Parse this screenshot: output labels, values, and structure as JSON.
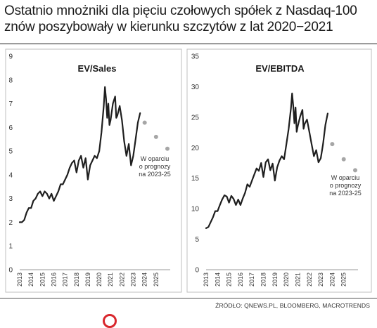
{
  "headline": "Ostatnio mnożniki dla pięciu czołowych spółek z Nasdaq-100 znów poszybowały w kierunku szczytów z lat 2020−2021",
  "source": "ŹRÓDŁO: QNEWS.PL, BLOOMBERG, MACROTRENDS",
  "colors": {
    "line": "#1f1f1f",
    "forecast": "#a6a6a6",
    "frame": "#bfbfbf"
  },
  "chart_data": [
    {
      "type": "line",
      "title": "EV/Sales",
      "ylim": [
        0,
        9
      ],
      "yticks": [
        "0",
        "1",
        "2",
        "3",
        "4",
        "5",
        "6",
        "7",
        "8",
        "9"
      ],
      "xticks": [
        "2013",
        "2014",
        "2015",
        "2016",
        "2017",
        "2018",
        "2019",
        "2020",
        "2021",
        "2022",
        "2023",
        "2024",
        "2025"
      ],
      "xlim": [
        2013,
        2026
      ],
      "annotation": [
        "W oparciu",
        "o prognozy",
        "na 2023-25"
      ],
      "series": [
        {
          "x": [
            2013.0,
            2013.2,
            2013.4,
            2013.6,
            2013.8,
            2014.0,
            2014.2,
            2014.4,
            2014.6,
            2014.8,
            2015.0,
            2015.2,
            2015.4,
            2015.6,
            2015.8,
            2016.0,
            2016.2,
            2016.4,
            2016.6,
            2016.8,
            2017.0,
            2017.2,
            2017.4,
            2017.6,
            2017.8,
            2018.0,
            2018.2,
            2018.4,
            2018.6,
            2018.8,
            2019.0,
            2019.2,
            2019.4,
            2019.6,
            2019.8,
            2020.0,
            2020.2,
            2020.4,
            2020.5,
            2020.6,
            2020.7,
            2020.8,
            2020.9,
            2021.0,
            2021.2,
            2021.4,
            2021.5,
            2021.6,
            2021.8,
            2022.0,
            2022.2,
            2022.4,
            2022.6,
            2022.8,
            2023.0,
            2023.2,
            2023.4,
            2023.6
          ],
          "y": [
            2.0,
            2.0,
            2.1,
            2.4,
            2.6,
            2.6,
            2.9,
            3.0,
            3.2,
            3.3,
            3.1,
            3.3,
            3.2,
            3.0,
            3.2,
            2.9,
            3.1,
            3.3,
            3.6,
            3.6,
            3.8,
            4.0,
            4.3,
            4.5,
            4.6,
            4.1,
            4.6,
            4.8,
            4.3,
            4.7,
            3.8,
            4.4,
            4.6,
            4.8,
            4.7,
            5.0,
            5.8,
            6.9,
            7.7,
            7.2,
            6.4,
            7.0,
            6.1,
            6.3,
            7.0,
            7.3,
            6.4,
            6.5,
            6.9,
            6.3,
            5.4,
            4.8,
            5.3,
            4.4,
            4.8,
            5.5,
            6.2,
            6.6
          ]
        },
        {
          "name": "forecast",
          "x": [
            2024.0,
            2025.0,
            2026.0
          ],
          "y": [
            6.2,
            5.6,
            5.1
          ]
        }
      ]
    },
    {
      "type": "line",
      "title": "EV/EBITDA",
      "ylim": [
        0,
        35
      ],
      "yticks": [
        "0",
        "5",
        "10",
        "15",
        "20",
        "25",
        "30",
        "35"
      ],
      "xticks": [
        "2013",
        "2014",
        "2015",
        "2016",
        "2017",
        "2018",
        "2019",
        "2020",
        "2021",
        "2022",
        "2023",
        "2024",
        "2025"
      ],
      "xlim": [
        2013,
        2026
      ],
      "annotation": [
        "W oparciu",
        "o prognozy",
        "na 2023-25"
      ],
      "series": [
        {
          "x": [
            2013.0,
            2013.2,
            2013.4,
            2013.6,
            2013.8,
            2014.0,
            2014.2,
            2014.4,
            2014.6,
            2014.8,
            2015.0,
            2015.2,
            2015.4,
            2015.6,
            2015.8,
            2016.0,
            2016.2,
            2016.4,
            2016.6,
            2016.8,
            2017.0,
            2017.2,
            2017.4,
            2017.6,
            2017.8,
            2018.0,
            2018.2,
            2018.4,
            2018.6,
            2018.8,
            2019.0,
            2019.2,
            2019.4,
            2019.6,
            2019.8,
            2020.0,
            2020.2,
            2020.4,
            2020.5,
            2020.6,
            2020.7,
            2020.8,
            2020.9,
            2021.0,
            2021.2,
            2021.4,
            2021.5,
            2021.6,
            2021.8,
            2022.0,
            2022.2,
            2022.4,
            2022.6,
            2022.8,
            2023.0,
            2023.2,
            2023.4,
            2023.6
          ],
          "y": [
            6.8,
            7.0,
            7.8,
            8.6,
            9.6,
            9.6,
            10.6,
            11.5,
            12.2,
            12.0,
            11.0,
            12.1,
            11.6,
            10.6,
            11.5,
            10.6,
            11.7,
            12.6,
            14.0,
            13.6,
            14.6,
            15.6,
            16.6,
            16.2,
            17.5,
            15.2,
            17.6,
            18.1,
            16.3,
            17.4,
            14.6,
            16.8,
            17.9,
            18.6,
            18.1,
            20.6,
            23.1,
            26.5,
            28.9,
            26.9,
            24.0,
            26.6,
            22.6,
            23.6,
            25.1,
            26.2,
            23.1,
            23.9,
            24.6,
            22.6,
            20.6,
            18.6,
            19.6,
            17.6,
            18.3,
            20.6,
            23.7,
            25.6
          ]
        },
        {
          "name": "forecast",
          "x": [
            2024.0,
            2025.0,
            2026.0
          ],
          "y": [
            20.6,
            18.1,
            16.3
          ]
        }
      ]
    }
  ]
}
